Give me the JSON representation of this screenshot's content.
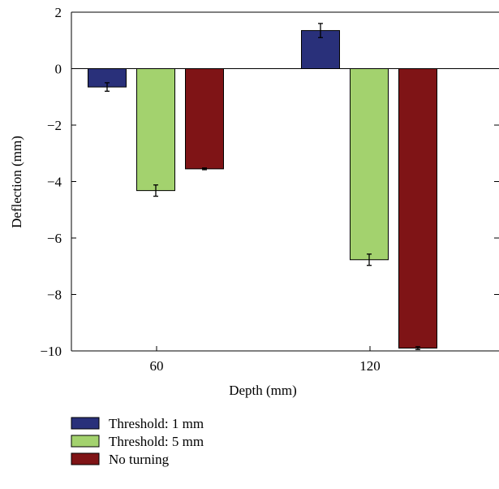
{
  "chart_data": {
    "type": "bar",
    "title": "",
    "xlabel": "Depth (mm)",
    "ylabel": "Deflection (mm)",
    "categories": [
      "60",
      "120"
    ],
    "ylim": [
      -10,
      2
    ],
    "yticks": [
      2,
      0,
      -2,
      -4,
      -6,
      -8,
      -10
    ],
    "ytick_labels": [
      "2",
      "0",
      "−2",
      "−4",
      "−6",
      "−8",
      "−10"
    ],
    "grid": false,
    "legend_position": "bottom-left",
    "series": [
      {
        "name": "Threshold: 1 mm",
        "color": "#29307a",
        "values": [
          -0.65,
          1.35
        ],
        "errors": [
          0.15,
          0.25
        ]
      },
      {
        "name": "Threshold: 5 mm",
        "color": "#a3d26e",
        "values": [
          -4.32,
          -6.77
        ],
        "errors": [
          0.2,
          0.2
        ]
      },
      {
        "name": "No turning",
        "color": "#7f1416",
        "values": [
          -3.55,
          -9.9
        ],
        "errors": [
          0.03,
          0.05
        ]
      }
    ]
  }
}
